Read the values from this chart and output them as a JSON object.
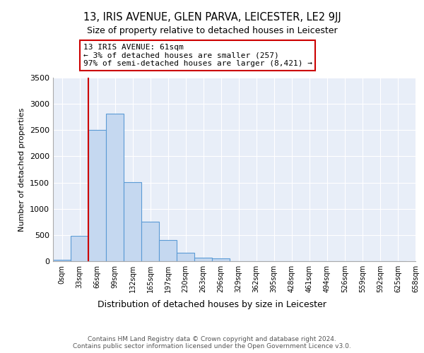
{
  "title1": "13, IRIS AVENUE, GLEN PARVA, LEICESTER, LE2 9JJ",
  "title2": "Size of property relative to detached houses in Leicester",
  "xlabel": "Distribution of detached houses by size in Leicester",
  "ylabel": "Number of detached properties",
  "bin_labels": [
    "0sqm",
    "33sqm",
    "66sqm",
    "99sqm",
    "132sqm",
    "165sqm",
    "197sqm",
    "230sqm",
    "263sqm",
    "296sqm",
    "329sqm",
    "362sqm",
    "395sqm",
    "428sqm",
    "461sqm",
    "494sqm",
    "526sqm",
    "559sqm",
    "592sqm",
    "625sqm",
    "658sqm"
  ],
  "bar_values": [
    30,
    480,
    2500,
    2820,
    1510,
    750,
    400,
    155,
    65,
    50,
    0,
    0,
    0,
    0,
    0,
    0,
    0,
    0,
    0,
    0
  ],
  "bar_color": "#c5d8f0",
  "bar_edge_color": "#5b9bd5",
  "vline_x_idx": 2,
  "vline_color": "#cc0000",
  "annotation_text": "13 IRIS AVENUE: 61sqm\n← 3% of detached houses are smaller (257)\n97% of semi-detached houses are larger (8,421) →",
  "annotation_box_color": "#ffffff",
  "annotation_box_edge": "#cc0000",
  "footer_text": "Contains HM Land Registry data © Crown copyright and database right 2024.\nContains public sector information licensed under the Open Government Licence v3.0.",
  "ylim": [
    0,
    3500
  ],
  "yticks": [
    0,
    500,
    1000,
    1500,
    2000,
    2500,
    3000,
    3500
  ],
  "background_color": "#ffffff",
  "plot_bg_color": "#e8eef8",
  "grid_color": "#ffffff"
}
